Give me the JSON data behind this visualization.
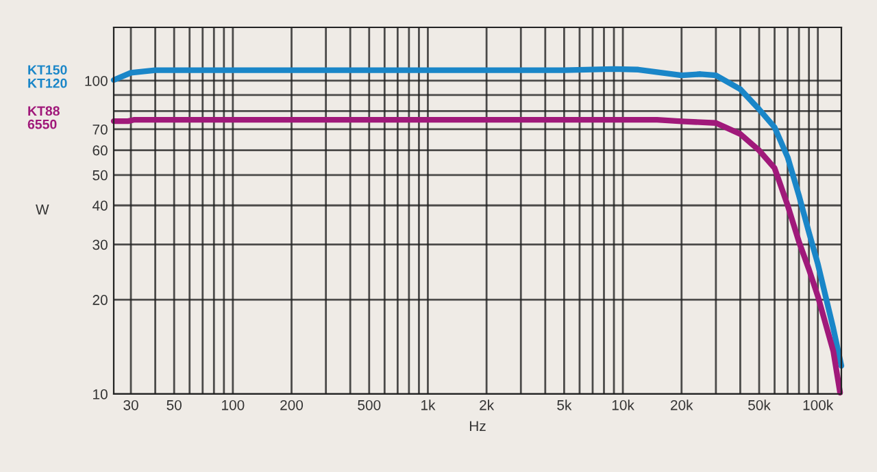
{
  "chart_data": {
    "type": "line",
    "xlabel": "Hz",
    "ylabel": "W",
    "log": "xy",
    "grid": true,
    "legend": false,
    "marker": "none",
    "line_style": "solid",
    "xlim": [
      24.5,
      132000
    ],
    "ylim": [
      10,
      148
    ],
    "xticks": [
      30,
      {
        "value": 40,
        "label": null
      },
      50,
      {
        "value": 60,
        "label": null
      },
      {
        "value": 70,
        "label": null
      },
      {
        "value": 80,
        "label": null
      },
      {
        "value": 90,
        "label": null
      },
      100,
      200,
      {
        "value": 300,
        "label": null
      },
      {
        "value": 400,
        "label": null
      },
      500,
      {
        "value": 600,
        "label": null
      },
      {
        "value": 700,
        "label": null
      },
      {
        "value": 800,
        "label": null
      },
      {
        "value": 900,
        "label": null
      },
      {
        "value": 1000,
        "label": "1k"
      },
      {
        "value": 2000,
        "label": "2k"
      },
      {
        "value": 3000,
        "label": null
      },
      {
        "value": 4000,
        "label": null
      },
      {
        "value": 5000,
        "label": "5k"
      },
      {
        "value": 6000,
        "label": null
      },
      {
        "value": 7000,
        "label": null
      },
      {
        "value": 8000,
        "label": null
      },
      {
        "value": 9000,
        "label": null
      },
      {
        "value": 10000,
        "label": "10k"
      },
      {
        "value": 20000,
        "label": "20k"
      },
      {
        "value": 30000,
        "label": null
      },
      {
        "value": 40000,
        "label": null
      },
      {
        "value": 50000,
        "label": "50k"
      },
      {
        "value": 60000,
        "label": null
      },
      {
        "value": 70000,
        "label": null
      },
      {
        "value": 80000,
        "label": null
      },
      {
        "value": 90000,
        "label": null
      },
      {
        "value": 100000,
        "label": "100k"
      }
    ],
    "yticks": [
      10,
      20,
      30,
      40,
      50,
      60,
      70,
      {
        "value": 80,
        "label": null
      },
      {
        "value": 90,
        "label": null
      },
      100
    ],
    "series": [
      {
        "name": "KT150\nKT120",
        "color": "#1a86c8",
        "x": [
          24.5,
          30,
          40,
          100,
          1000,
          5000,
          9000,
          12000,
          20000,
          25000,
          30000,
          40000,
          50000,
          60000,
          70000,
          80000,
          90000,
          100000,
          120000,
          132000
        ],
        "values": [
          100.5,
          106,
          108,
          108,
          108,
          108,
          109,
          108.5,
          104,
          105,
          104,
          94,
          81,
          71,
          57,
          43,
          32.8,
          26,
          16.2,
          12.3
        ]
      },
      {
        "name": "KT88\n6550",
        "color": "#a0197a",
        "x": [
          24.5,
          29,
          31,
          100,
          1000,
          10000,
          15000,
          20000,
          30000,
          40000,
          50000,
          60000,
          70000,
          80000,
          90000,
          100000,
          120000,
          130000
        ],
        "values": [
          74.3,
          74.3,
          75,
          75,
          75,
          75,
          75,
          74.2,
          73.3,
          67.6,
          59.9,
          52.6,
          40,
          30.6,
          25,
          20.5,
          13.7,
          10.1
        ]
      }
    ]
  }
}
